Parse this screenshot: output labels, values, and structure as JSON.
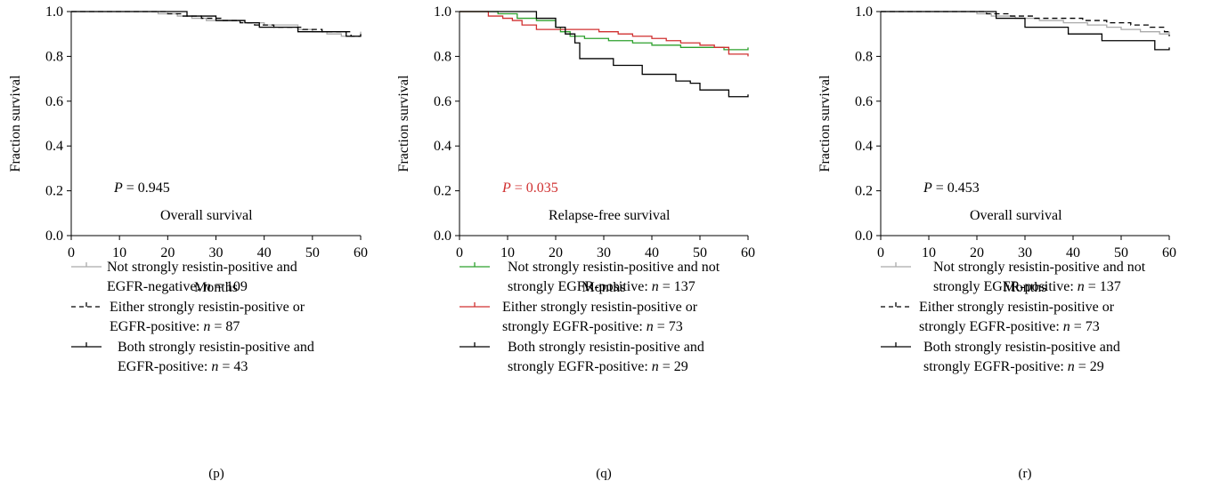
{
  "chart_data": [
    {
      "type": "line",
      "panel_label": "(p)",
      "xlabel": "Months",
      "ylabel": "Fraction survival",
      "xlim": [
        0,
        60
      ],
      "ylim": [
        0,
        1.0
      ],
      "xticks": [
        "0",
        "10",
        "20",
        "30",
        "40",
        "50",
        "60"
      ],
      "yticks": [
        "0.0",
        "0.2",
        "0.4",
        "0.6",
        "0.8",
        "1.0"
      ],
      "annotation_p_label": "P",
      "annotation_p_value": " = 0.945",
      "annotation_p_color": "#000000",
      "annotation_title": "Overall survival",
      "series": [
        {
          "legend_lines": [
            "Not strongly resistin-positive and",
            "EGFR-negative: n = 109"
          ],
          "color": "#aaaaaa",
          "dash": "solid",
          "x": [
            0,
            18,
            22,
            25,
            28,
            32,
            36,
            40,
            44,
            47,
            50,
            53,
            56,
            58,
            60
          ],
          "y": [
            1.0,
            0.99,
            0.98,
            0.97,
            0.96,
            0.96,
            0.95,
            0.94,
            0.94,
            0.92,
            0.91,
            0.9,
            0.89,
            0.89,
            0.91
          ]
        },
        {
          "legend_lines": [
            "Either strongly resistin-positive or",
            "EGFR-positive: n = 87"
          ],
          "color": "#000000",
          "dash": "dashed",
          "x": [
            0,
            20,
            23,
            27,
            31,
            35,
            38,
            42,
            45,
            48,
            52,
            56,
            58,
            60
          ],
          "y": [
            1.0,
            0.99,
            0.98,
            0.97,
            0.96,
            0.95,
            0.94,
            0.93,
            0.93,
            0.92,
            0.91,
            0.91,
            0.89,
            0.9
          ]
        },
        {
          "legend_lines": [
            "Both strongly resistin-positive and",
            "EGFR-positive: n = 43"
          ],
          "color": "#000000",
          "dash": "solid",
          "x": [
            0,
            22,
            24,
            30,
            33,
            36,
            39,
            45,
            47,
            56,
            57,
            60
          ],
          "y": [
            1.0,
            1.0,
            0.98,
            0.96,
            0.96,
            0.95,
            0.93,
            0.93,
            0.91,
            0.91,
            0.89,
            0.89
          ]
        }
      ]
    },
    {
      "type": "line",
      "panel_label": "(q)",
      "xlabel": "Months",
      "ylabel": "Fraction survival",
      "xlim": [
        0,
        60
      ],
      "ylim": [
        0,
        1.0
      ],
      "xticks": [
        "0",
        "10",
        "20",
        "30",
        "40",
        "50",
        "60"
      ],
      "yticks": [
        "0.0",
        "0.2",
        "0.4",
        "0.6",
        "0.8",
        "1.0"
      ],
      "annotation_p_label": "P",
      "annotation_p_value": " = 0.035",
      "annotation_p_color": "#d03030",
      "annotation_title": "Relapse-free survival",
      "series": [
        {
          "legend_lines": [
            "Not strongly resistin-positive and not",
            "strongly EGFR-positive: n = 137"
          ],
          "color": "#2ca02c",
          "dash": "solid",
          "x": [
            0,
            8,
            12,
            16,
            20,
            21,
            23,
            26,
            31,
            36,
            40,
            46,
            52,
            55,
            58,
            60
          ],
          "y": [
            1.0,
            0.99,
            0.97,
            0.96,
            0.93,
            0.91,
            0.89,
            0.88,
            0.87,
            0.86,
            0.85,
            0.84,
            0.84,
            0.83,
            0.83,
            0.84
          ]
        },
        {
          "legend_lines": [
            "Either strongly resistin-positive or",
            "strongly EGFR-positive: n = 73"
          ],
          "color": "#d03030",
          "dash": "solid",
          "x": [
            0,
            6,
            9,
            11,
            13,
            16,
            22,
            29,
            33,
            36,
            40,
            43,
            46,
            50,
            53,
            56,
            60
          ],
          "y": [
            1.0,
            0.98,
            0.97,
            0.96,
            0.94,
            0.92,
            0.92,
            0.91,
            0.9,
            0.89,
            0.88,
            0.87,
            0.86,
            0.85,
            0.84,
            0.81,
            0.8
          ]
        },
        {
          "legend_lines": [
            "Both strongly resistin-positive and",
            "strongly EGFR-positive: n = 29"
          ],
          "color": "#000000",
          "dash": "solid",
          "x": [
            0,
            14,
            16,
            20,
            22,
            24,
            25,
            30,
            32,
            37,
            38,
            44,
            45,
            48,
            50,
            56,
            60
          ],
          "y": [
            1.0,
            1.0,
            0.97,
            0.93,
            0.9,
            0.86,
            0.79,
            0.79,
            0.76,
            0.76,
            0.72,
            0.72,
            0.69,
            0.68,
            0.65,
            0.62,
            0.63
          ]
        }
      ]
    },
    {
      "type": "line",
      "panel_label": "(r)",
      "xlabel": "Months",
      "ylabel": "Fraction survival",
      "xlim": [
        0,
        60
      ],
      "ylim": [
        0,
        1.0
      ],
      "xticks": [
        "0",
        "10",
        "20",
        "30",
        "40",
        "50",
        "60"
      ],
      "yticks": [
        "0.0",
        "0.2",
        "0.4",
        "0.6",
        "0.8",
        "1.0"
      ],
      "annotation_p_label": "P",
      "annotation_p_value": " = 0.453",
      "annotation_p_color": "#000000",
      "annotation_title": "Overall survival",
      "series": [
        {
          "legend_lines": [
            "Not strongly resistin-positive and not",
            "strongly EGFR-positive: n = 137"
          ],
          "color": "#aaaaaa",
          "dash": "solid",
          "x": [
            0,
            20,
            23,
            28,
            33,
            38,
            43,
            47,
            50,
            54,
            58,
            60
          ],
          "y": [
            1.0,
            0.99,
            0.98,
            0.97,
            0.96,
            0.95,
            0.94,
            0.93,
            0.92,
            0.91,
            0.9,
            0.91
          ]
        },
        {
          "legend_lines": [
            "Either strongly resistin-positive or",
            "strongly EGFR-positive: n = 73"
          ],
          "color": "#000000",
          "dash": "dashed",
          "x": [
            0,
            18,
            22,
            27,
            32,
            37,
            42,
            47,
            52,
            56,
            59,
            60
          ],
          "y": [
            1.0,
            1.0,
            0.99,
            0.98,
            0.97,
            0.97,
            0.96,
            0.95,
            0.94,
            0.93,
            0.91,
            0.89
          ]
        },
        {
          "legend_lines": [
            "Both strongly resistin-positive and",
            "strongly EGFR-positive: n = 29"
          ],
          "color": "#000000",
          "dash": "solid",
          "x": [
            0,
            23,
            24,
            29,
            30,
            38,
            39,
            45,
            46,
            56,
            57,
            60
          ],
          "y": [
            1.0,
            1.0,
            0.97,
            0.97,
            0.93,
            0.93,
            0.9,
            0.9,
            0.87,
            0.87,
            0.83,
            0.84
          ]
        }
      ]
    }
  ]
}
